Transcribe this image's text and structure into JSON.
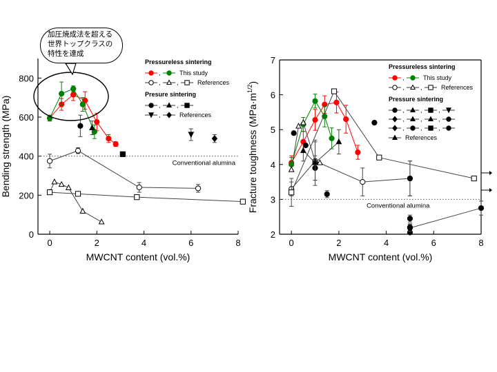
{
  "callout_lines": [
    "加圧焼成法を超える",
    "世界トップクラスの",
    "特性を達成"
  ],
  "chart_data": [
    {
      "type": "scatter",
      "title": "",
      "xlabel": "MWCNT content (vol.%)",
      "ylabel": "Bending strength (MPa)",
      "xlim": [
        -0.5,
        8
      ],
      "ylim": [
        0,
        900
      ],
      "xticks": [
        0,
        2,
        4,
        6,
        8
      ],
      "yticks": [
        0,
        200,
        400,
        600,
        800
      ],
      "reference_line": {
        "y": 400,
        "label": "Conventional alumina"
      },
      "legend": {
        "heading_pressureless": "Pressureless sintering",
        "this_study": "This study",
        "references": "References",
        "heading_pressure": "Presure sintering"
      },
      "series": [
        {
          "group": "pressureless",
          "source": "This study",
          "marker": "circle-filled",
          "color": "#ff0000",
          "line": true,
          "x": [
            0,
            0.5,
            1,
            1.5,
            2,
            2.5,
            2.8
          ],
          "y": [
            595,
            665,
            715,
            685,
            575,
            490,
            462
          ],
          "err": [
            15,
            30,
            30,
            45,
            45,
            20,
            12
          ]
        },
        {
          "group": "pressureless",
          "source": "This study",
          "marker": "circle-filled",
          "color": "#008000",
          "line": true,
          "x": [
            0,
            0.5,
            1,
            1.4,
            1.9
          ],
          "y": [
            595,
            720,
            745,
            665,
            525
          ],
          "err": [
            15,
            60,
            15,
            35,
            35
          ]
        },
        {
          "group": "pressureless",
          "source": "References",
          "marker": "circle-open",
          "color": "#000000",
          "line": true,
          "x": [
            0,
            1.2,
            3.8,
            6.3
          ],
          "y": [
            375,
            428,
            240,
            235
          ],
          "err": [
            35,
            15,
            25,
            20
          ]
        },
        {
          "group": "pressureless",
          "source": "References",
          "marker": "triangle-open",
          "color": "#000000",
          "line": true,
          "x": [
            0,
            0.2,
            0.5,
            0.8,
            1.4,
            2.2
          ],
          "y": [
            215,
            268,
            255,
            238,
            118,
            63
          ],
          "err": [
            0,
            0,
            0,
            0,
            0,
            0
          ]
        },
        {
          "group": "pressureless",
          "source": "References",
          "marker": "square-open",
          "color": "#000000",
          "line": true,
          "x": [
            0,
            1.2,
            3.7,
            8.2
          ],
          "y": [
            215,
            207,
            190,
            167
          ],
          "err": [
            10,
            0,
            0,
            0
          ]
        },
        {
          "group": "pressure",
          "marker": "circle-filled",
          "color": "#000000",
          "line": false,
          "x": [
            1.3
          ],
          "y": [
            555
          ],
          "err": [
            55
          ]
        },
        {
          "group": "pressure",
          "marker": "triangle-filled",
          "color": "#000000",
          "line": false,
          "x": [
            1.8
          ],
          "y": [
            545
          ],
          "err": [
            35
          ]
        },
        {
          "group": "pressure",
          "marker": "square-filled",
          "color": "#000000",
          "line": false,
          "x": [
            3.1
          ],
          "y": [
            410
          ],
          "err": [
            0
          ]
        },
        {
          "group": "pressure",
          "marker": "triangle-down-filled",
          "color": "#000000",
          "line": false,
          "x": [
            6
          ],
          "y": [
            510
          ],
          "err": [
            30
          ]
        },
        {
          "group": "pressure",
          "marker": "diamond-filled",
          "color": "#000000",
          "line": false,
          "x": [
            7
          ],
          "y": [
            490
          ],
          "err": [
            20
          ]
        }
      ]
    },
    {
      "type": "scatter",
      "title": "",
      "xlabel": "MWCNT content (vol.%)",
      "ylabel": "Fracture toughness (MPa·m",
      "ylabel_sup": "1/2",
      "ylabel_end": ")",
      "xlim": [
        -0.5,
        8
      ],
      "ylim": [
        2,
        7
      ],
      "xticks": [
        0,
        2,
        4,
        6,
        8
      ],
      "yticks": [
        2,
        3,
        4,
        5,
        6,
        7
      ],
      "reference_line": {
        "y": 3,
        "label": "Conventional alumina"
      },
      "legend": {
        "heading_pressureless": "Pressureless sintering",
        "this_study": "This study",
        "references": "References",
        "heading_pressure": "Pressure sintering",
        "pressure_references": "References"
      },
      "series": [
        {
          "group": "pressureless",
          "source": "This study",
          "marker": "circle-filled",
          "color": "#ff0000",
          "line": true,
          "x": [
            0,
            0.5,
            1,
            1.4,
            1.9,
            2.3,
            2.8
          ],
          "y": [
            4.05,
            4.65,
            5.28,
            5.72,
            5.78,
            5.3,
            4.35
          ],
          "err": [
            0.2,
            0.3,
            0.3,
            0.25,
            0.3,
            0.4,
            0.2
          ]
        },
        {
          "group": "pressureless",
          "source": "This study",
          "marker": "circle-filled",
          "color": "#008000",
          "line": true,
          "x": [
            0,
            0.5,
            1,
            1.4,
            1.7
          ],
          "y": [
            4.0,
            5.15,
            5.82,
            5.38,
            4.75
          ],
          "err": [
            0.2,
            0.2,
            0.2,
            0.3,
            0.3
          ]
        },
        {
          "group": "pressureless",
          "source": "References",
          "marker": "circle-open",
          "color": "#000000",
          "line": true,
          "x": [
            0,
            1,
            3,
            5
          ],
          "y": [
            3.3,
            4.1,
            3.5,
            3.6
          ],
          "err": [
            0.2,
            0.55,
            0.4,
            0.5
          ]
        },
        {
          "group": "pressureless",
          "source": "References",
          "marker": "triangle-open",
          "color": "#000000",
          "line": true,
          "x": [
            0,
            0.3,
            0.5,
            1,
            1.2
          ],
          "y": [
            3.85,
            5.1,
            5.2,
            4.1,
            4.05
          ],
          "err": [
            0,
            0,
            0,
            0,
            0
          ]
        },
        {
          "group": "pressureless",
          "source": "References",
          "marker": "square-open",
          "color": "#000000",
          "line": true,
          "x": [
            0,
            1.8,
            3.7,
            7.7
          ],
          "y": [
            3.2,
            6.1,
            4.2,
            3.6
          ],
          "err": [
            0.4,
            0,
            0,
            0
          ]
        },
        {
          "group": "pressure",
          "marker": "mixed-black",
          "color": "#000000",
          "line": false,
          "x": [
            0.1,
            0.6,
            1,
            1.5,
            3.5,
            5,
            5,
            5,
            5
          ],
          "y": [
            4.9,
            4.55,
            3.9,
            3.15,
            5.2,
            2.45,
            2.2,
            2.05,
            3.6
          ],
          "err": [
            0,
            0,
            0.35,
            0.1,
            0,
            0.1,
            0.1,
            0,
            0.5
          ]
        },
        {
          "group": "pressure",
          "marker": "triangle-filled",
          "color": "#000000",
          "line": true,
          "x": [
            0.5,
            1,
            2
          ],
          "y": [
            4.4,
            4.05,
            4.65
          ],
          "err": [
            0.3,
            0.65,
            0.35
          ]
        },
        {
          "group": "pressure",
          "marker": "mixed-black",
          "color": "#000000",
          "line": true,
          "x": [
            5,
            8
          ],
          "y": [
            2.18,
            2.75
          ],
          "err": [
            0.1,
            0.2
          ]
        }
      ]
    }
  ]
}
